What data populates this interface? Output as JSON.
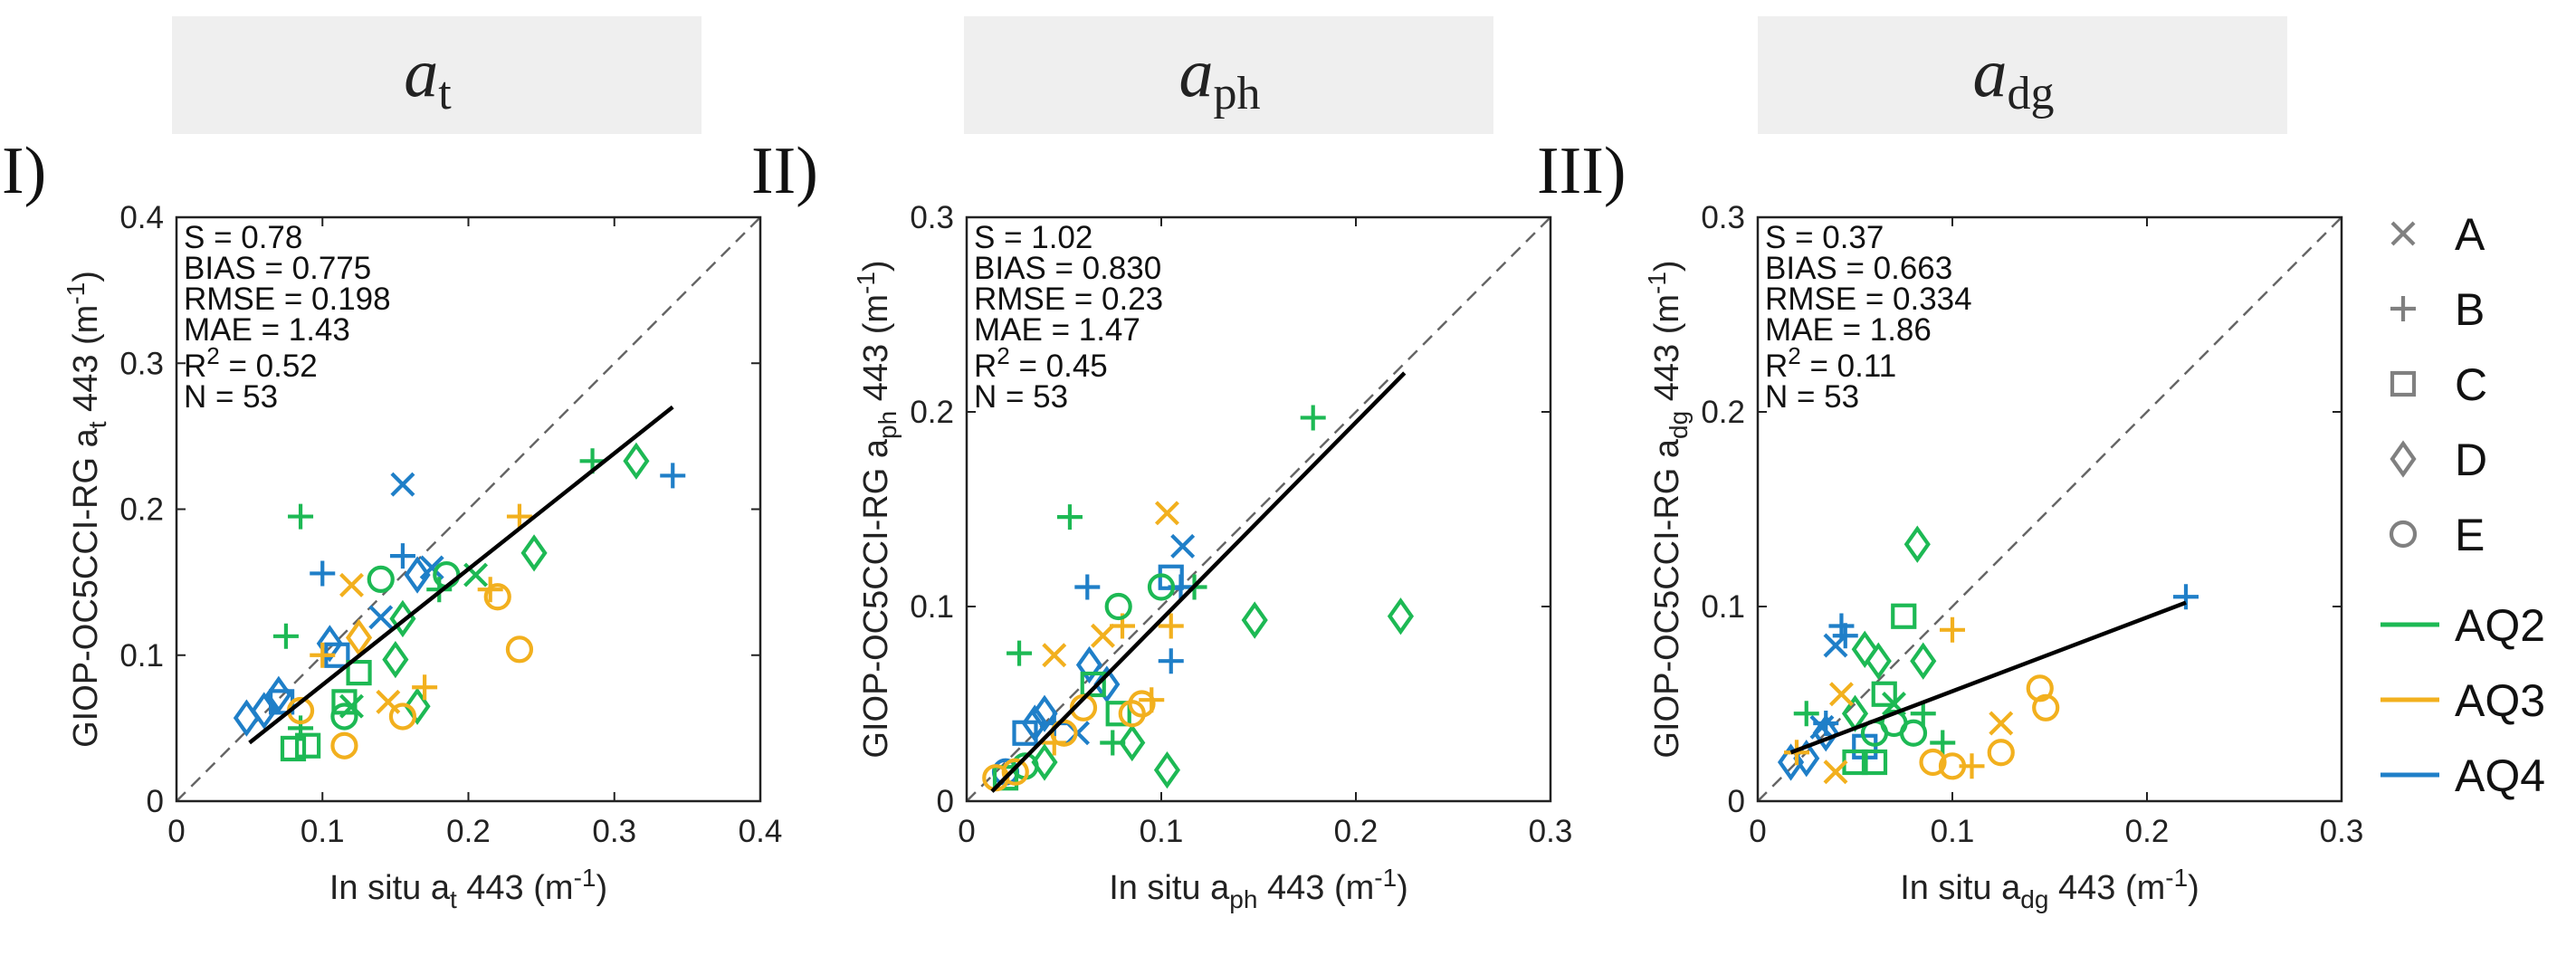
{
  "colors": {
    "AQ2": "#1db954",
    "AQ3": "#f2b01e",
    "AQ4": "#1f7fc8",
    "legend_marker": "#808080",
    "fit_line": "#000000",
    "one_to_one": "#666666",
    "header_bg": "#efefef"
  },
  "legend": {
    "markers": [
      {
        "symbol": "x",
        "label": "A"
      },
      {
        "symbol": "+",
        "label": "B"
      },
      {
        "symbol": "square",
        "label": "C"
      },
      {
        "symbol": "diamond",
        "label": "D"
      },
      {
        "symbol": "circle",
        "label": "E"
      }
    ],
    "lines": [
      {
        "label": "AQ2",
        "color_key": "AQ2"
      },
      {
        "label": "AQ3",
        "color_key": "AQ3"
      },
      {
        "label": "AQ4",
        "color_key": "AQ4"
      }
    ]
  },
  "chart_data": [
    {
      "type": "scatter",
      "panel": "I)",
      "header": {
        "main": "a",
        "sub": "t"
      },
      "xlabel": {
        "pre": "In situ a",
        "sub": "t",
        "post": " 443 (m",
        "sup": "-1",
        "end": ")"
      },
      "ylabel": {
        "pre": "GIOP-OC5CCI-RG a",
        "sub": "t",
        "post": " 443 (m",
        "sup": "-1",
        "end": ")"
      },
      "xlim": [
        0,
        0.4
      ],
      "ylim": [
        0,
        0.4
      ],
      "xticks": [
        "0",
        "0.1",
        "0.2",
        "0.3",
        "0.4"
      ],
      "yticks": [
        "0",
        "0.1",
        "0.2",
        "0.3",
        "0.4"
      ],
      "stats": {
        "S": "S = 0.78",
        "BIAS": "BIAS = 0.775",
        "RMSE": "RMSE = 0.198",
        "MAE": "MAE = 1.43",
        "R2": "0.52",
        "N": "N = 53"
      },
      "fit_line": [
        [
          0.05,
          0.04
        ],
        [
          0.34,
          0.27
        ]
      ],
      "points": [
        {
          "s": "x",
          "g": "AQ4",
          "x": 0.155,
          "y": 0.217
        },
        {
          "s": "x",
          "g": "AQ4",
          "x": 0.14,
          "y": 0.126
        },
        {
          "s": "x",
          "g": "AQ4",
          "x": 0.175,
          "y": 0.16
        },
        {
          "s": "+",
          "g": "AQ4",
          "x": 0.1,
          "y": 0.156
        },
        {
          "s": "+",
          "g": "AQ4",
          "x": 0.155,
          "y": 0.168
        },
        {
          "s": "+",
          "g": "AQ4",
          "x": 0.34,
          "y": 0.223
        },
        {
          "s": "square",
          "g": "AQ4",
          "x": 0.072,
          "y": 0.068
        },
        {
          "s": "square",
          "g": "AQ4",
          "x": 0.11,
          "y": 0.1
        },
        {
          "s": "diamond",
          "g": "AQ4",
          "x": 0.048,
          "y": 0.057
        },
        {
          "s": "diamond",
          "g": "AQ4",
          "x": 0.07,
          "y": 0.073
        },
        {
          "s": "diamond",
          "g": "AQ4",
          "x": 0.105,
          "y": 0.108
        },
        {
          "s": "diamond",
          "g": "AQ4",
          "x": 0.165,
          "y": 0.155
        },
        {
          "s": "diamond",
          "g": "AQ4",
          "x": 0.06,
          "y": 0.062
        },
        {
          "s": "+",
          "g": "AQ2",
          "x": 0.085,
          "y": 0.195
        },
        {
          "s": "+",
          "g": "AQ2",
          "x": 0.075,
          "y": 0.113
        },
        {
          "s": "+",
          "g": "AQ2",
          "x": 0.285,
          "y": 0.233
        },
        {
          "s": "+",
          "g": "AQ2",
          "x": 0.18,
          "y": 0.145
        },
        {
          "s": "+",
          "g": "AQ2",
          "x": 0.085,
          "y": 0.05
        },
        {
          "s": "x",
          "g": "AQ2",
          "x": 0.12,
          "y": 0.065
        },
        {
          "s": "x",
          "g": "AQ2",
          "x": 0.205,
          "y": 0.155
        },
        {
          "s": "square",
          "g": "AQ2",
          "x": 0.08,
          "y": 0.036
        },
        {
          "s": "square",
          "g": "AQ2",
          "x": 0.09,
          "y": 0.038
        },
        {
          "s": "square",
          "g": "AQ2",
          "x": 0.125,
          "y": 0.088
        },
        {
          "s": "square",
          "g": "AQ2",
          "x": 0.115,
          "y": 0.068
        },
        {
          "s": "diamond",
          "g": "AQ2",
          "x": 0.315,
          "y": 0.233
        },
        {
          "s": "diamond",
          "g": "AQ2",
          "x": 0.245,
          "y": 0.17
        },
        {
          "s": "diamond",
          "g": "AQ2",
          "x": 0.155,
          "y": 0.125
        },
        {
          "s": "diamond",
          "g": "AQ2",
          "x": 0.165,
          "y": 0.065
        },
        {
          "s": "diamond",
          "g": "AQ2",
          "x": 0.15,
          "y": 0.097
        },
        {
          "s": "circle",
          "g": "AQ2",
          "x": 0.14,
          "y": 0.152
        },
        {
          "s": "circle",
          "g": "AQ2",
          "x": 0.185,
          "y": 0.155
        },
        {
          "s": "circle",
          "g": "AQ2",
          "x": 0.115,
          "y": 0.058
        },
        {
          "s": "+",
          "g": "AQ3",
          "x": 0.235,
          "y": 0.195
        },
        {
          "s": "+",
          "g": "AQ3",
          "x": 0.215,
          "y": 0.145
        },
        {
          "s": "+",
          "g": "AQ3",
          "x": 0.17,
          "y": 0.078
        },
        {
          "s": "+",
          "g": "AQ3",
          "x": 0.1,
          "y": 0.1
        },
        {
          "s": "x",
          "g": "AQ3",
          "x": 0.12,
          "y": 0.148
        },
        {
          "s": "x",
          "g": "AQ3",
          "x": 0.145,
          "y": 0.068
        },
        {
          "s": "diamond",
          "g": "AQ3",
          "x": 0.125,
          "y": 0.112
        },
        {
          "s": "circle",
          "g": "AQ3",
          "x": 0.22,
          "y": 0.14
        },
        {
          "s": "circle",
          "g": "AQ3",
          "x": 0.235,
          "y": 0.104
        },
        {
          "s": "circle",
          "g": "AQ3",
          "x": 0.115,
          "y": 0.038
        },
        {
          "s": "circle",
          "g": "AQ3",
          "x": 0.155,
          "y": 0.058
        },
        {
          "s": "circle",
          "g": "AQ3",
          "x": 0.085,
          "y": 0.062
        }
      ]
    },
    {
      "type": "scatter",
      "panel": "II)",
      "header": {
        "main": "a",
        "sub": "ph"
      },
      "xlabel": {
        "pre": "In situ a",
        "sub": "ph",
        "post": " 443 (m",
        "sup": "-1",
        "end": ")"
      },
      "ylabel": {
        "pre": "GIOP-OC5CCI-RG a",
        "sub": "ph",
        "post": " 443 (m",
        "sup": "-1",
        "end": ")"
      },
      "xlim": [
        0,
        0.3
      ],
      "ylim": [
        0,
        0.3
      ],
      "xticks": [
        "0",
        "0.1",
        "0.2",
        "0.3"
      ],
      "yticks": [
        "0",
        "0.1",
        "0.2",
        "0.3"
      ],
      "stats": {
        "S": "S = 1.02",
        "BIAS": "BIAS = 0.830",
        "RMSE": "RMSE = 0.23",
        "MAE": "MAE = 1.47",
        "R2": "0.45",
        "N": "N = 53"
      },
      "fit_line": [
        [
          0.013,
          0.005
        ],
        [
          0.225,
          0.22
        ]
      ],
      "points": [
        {
          "s": "+",
          "g": "AQ2",
          "x": 0.178,
          "y": 0.197
        },
        {
          "s": "+",
          "g": "AQ2",
          "x": 0.053,
          "y": 0.146
        },
        {
          "s": "+",
          "g": "AQ2",
          "x": 0.027,
          "y": 0.076
        },
        {
          "s": "+",
          "g": "AQ2",
          "x": 0.117,
          "y": 0.11
        },
        {
          "s": "+",
          "g": "AQ2",
          "x": 0.075,
          "y": 0.03
        },
        {
          "s": "x",
          "g": "AQ3",
          "x": 0.103,
          "y": 0.148
        },
        {
          "s": "x",
          "g": "AQ3",
          "x": 0.045,
          "y": 0.075
        },
        {
          "s": "x",
          "g": "AQ3",
          "x": 0.07,
          "y": 0.085
        },
        {
          "s": "+",
          "g": "AQ3",
          "x": 0.08,
          "y": 0.09
        },
        {
          "s": "+",
          "g": "AQ3",
          "x": 0.105,
          "y": 0.09
        },
        {
          "s": "+",
          "g": "AQ3",
          "x": 0.095,
          "y": 0.052
        },
        {
          "s": "+",
          "g": "AQ3",
          "x": 0.045,
          "y": 0.03
        },
        {
          "s": "x",
          "g": "AQ4",
          "x": 0.111,
          "y": 0.131
        },
        {
          "s": "x",
          "g": "AQ4",
          "x": 0.057,
          "y": 0.035
        },
        {
          "s": "+",
          "g": "AQ4",
          "x": 0.062,
          "y": 0.11
        },
        {
          "s": "+",
          "g": "AQ4",
          "x": 0.105,
          "y": 0.072
        },
        {
          "s": "+",
          "g": "AQ4",
          "x": 0.11,
          "y": 0.11
        },
        {
          "s": "+",
          "g": "AQ4",
          "x": 0.045,
          "y": 0.04
        },
        {
          "s": "diamond",
          "g": "AQ4",
          "x": 0.063,
          "y": 0.07
        },
        {
          "s": "diamond",
          "g": "AQ4",
          "x": 0.072,
          "y": 0.06
        },
        {
          "s": "diamond",
          "g": "AQ4",
          "x": 0.035,
          "y": 0.04
        },
        {
          "s": "diamond",
          "g": "AQ4",
          "x": 0.04,
          "y": 0.045
        },
        {
          "s": "square",
          "g": "AQ4",
          "x": 0.03,
          "y": 0.035
        },
        {
          "s": "square",
          "g": "AQ4",
          "x": 0.105,
          "y": 0.115
        },
        {
          "s": "circle",
          "g": "AQ4",
          "x": 0.02,
          "y": 0.015
        },
        {
          "s": "diamond",
          "g": "AQ2",
          "x": 0.223,
          "y": 0.095
        },
        {
          "s": "diamond",
          "g": "AQ2",
          "x": 0.148,
          "y": 0.093
        },
        {
          "s": "diamond",
          "g": "AQ2",
          "x": 0.103,
          "y": 0.016
        },
        {
          "s": "diamond",
          "g": "AQ2",
          "x": 0.085,
          "y": 0.03
        },
        {
          "s": "diamond",
          "g": "AQ2",
          "x": 0.04,
          "y": 0.02
        },
        {
          "s": "square",
          "g": "AQ2",
          "x": 0.065,
          "y": 0.06
        },
        {
          "s": "square",
          "g": "AQ2",
          "x": 0.078,
          "y": 0.045
        },
        {
          "s": "square",
          "g": "AQ2",
          "x": 0.02,
          "y": 0.012
        },
        {
          "s": "circle",
          "g": "AQ2",
          "x": 0.078,
          "y": 0.1
        },
        {
          "s": "circle",
          "g": "AQ2",
          "x": 0.1,
          "y": 0.11
        },
        {
          "s": "circle",
          "g": "AQ2",
          "x": 0.03,
          "y": 0.018
        },
        {
          "s": "circle",
          "g": "AQ3",
          "x": 0.085,
          "y": 0.045
        },
        {
          "s": "circle",
          "g": "AQ3",
          "x": 0.09,
          "y": 0.05
        },
        {
          "s": "circle",
          "g": "AQ3",
          "x": 0.025,
          "y": 0.015
        },
        {
          "s": "circle",
          "g": "AQ3",
          "x": 0.06,
          "y": 0.048
        },
        {
          "s": "circle",
          "g": "AQ3",
          "x": 0.015,
          "y": 0.012
        },
        {
          "s": "circle",
          "g": "AQ3",
          "x": 0.05,
          "y": 0.035
        }
      ]
    },
    {
      "type": "scatter",
      "panel": "III)",
      "header": {
        "main": "a",
        "sub": "dg"
      },
      "xlabel": {
        "pre": "In situ a",
        "sub": "dg",
        "post": " 443 (m",
        "sup": "-1",
        "end": ")"
      },
      "ylabel": {
        "pre": "GIOP-OC5CCI-RG a",
        "sub": "dg",
        "post": " 443 (m",
        "sup": "-1",
        "end": ")"
      },
      "xlim": [
        0,
        0.3
      ],
      "ylim": [
        0,
        0.3
      ],
      "xticks": [
        "0",
        "0.1",
        "0.2",
        "0.3"
      ],
      "yticks": [
        "0",
        "0.1",
        "0.2",
        "0.3"
      ],
      "stats": {
        "S": "S = 0.37",
        "BIAS": "BIAS = 0.663",
        "RMSE": "RMSE = 0.334",
        "MAE": "MAE = 1.86",
        "R2": "0.11",
        "N": "N = 53"
      },
      "fit_line": [
        [
          0.017,
          0.025
        ],
        [
          0.22,
          0.102
        ]
      ],
      "points": [
        {
          "s": "+",
          "g": "AQ4",
          "x": 0.22,
          "y": 0.105
        },
        {
          "s": "+",
          "g": "AQ4",
          "x": 0.043,
          "y": 0.09
        },
        {
          "s": "+",
          "g": "AQ4",
          "x": 0.045,
          "y": 0.085
        },
        {
          "s": "+",
          "g": "AQ4",
          "x": 0.035,
          "y": 0.04
        },
        {
          "s": "x",
          "g": "AQ4",
          "x": 0.04,
          "y": 0.08
        },
        {
          "s": "x",
          "g": "AQ4",
          "x": 0.033,
          "y": 0.038
        },
        {
          "s": "diamond",
          "g": "AQ4",
          "x": 0.017,
          "y": 0.02
        },
        {
          "s": "diamond",
          "g": "AQ4",
          "x": 0.025,
          "y": 0.022
        },
        {
          "s": "diamond",
          "g": "AQ4",
          "x": 0.035,
          "y": 0.035
        },
        {
          "s": "square",
          "g": "AQ4",
          "x": 0.055,
          "y": 0.028
        },
        {
          "s": "diamond",
          "g": "AQ2",
          "x": 0.082,
          "y": 0.132
        },
        {
          "s": "diamond",
          "g": "AQ2",
          "x": 0.055,
          "y": 0.078
        },
        {
          "s": "diamond",
          "g": "AQ2",
          "x": 0.062,
          "y": 0.072
        },
        {
          "s": "diamond",
          "g": "AQ2",
          "x": 0.085,
          "y": 0.072
        },
        {
          "s": "diamond",
          "g": "AQ2",
          "x": 0.05,
          "y": 0.045
        },
        {
          "s": "square",
          "g": "AQ2",
          "x": 0.075,
          "y": 0.095
        },
        {
          "s": "square",
          "g": "AQ2",
          "x": 0.065,
          "y": 0.055
        },
        {
          "s": "square",
          "g": "AQ2",
          "x": 0.06,
          "y": 0.02
        },
        {
          "s": "square",
          "g": "AQ2",
          "x": 0.05,
          "y": 0.02
        },
        {
          "s": "+",
          "g": "AQ2",
          "x": 0.095,
          "y": 0.03
        },
        {
          "s": "+",
          "g": "AQ2",
          "x": 0.085,
          "y": 0.045
        },
        {
          "s": "+",
          "g": "AQ2",
          "x": 0.025,
          "y": 0.045
        },
        {
          "s": "x",
          "g": "AQ2",
          "x": 0.07,
          "y": 0.05
        },
        {
          "s": "circle",
          "g": "AQ2",
          "x": 0.06,
          "y": 0.035
        },
        {
          "s": "circle",
          "g": "AQ2",
          "x": 0.07,
          "y": 0.04
        },
        {
          "s": "circle",
          "g": "AQ2",
          "x": 0.08,
          "y": 0.035
        },
        {
          "s": "+",
          "g": "AQ3",
          "x": 0.1,
          "y": 0.088
        },
        {
          "s": "+",
          "g": "AQ3",
          "x": 0.11,
          "y": 0.018
        },
        {
          "s": "+",
          "g": "AQ3",
          "x": 0.02,
          "y": 0.025
        },
        {
          "s": "x",
          "g": "AQ3",
          "x": 0.043,
          "y": 0.055
        },
        {
          "s": "x",
          "g": "AQ3",
          "x": 0.125,
          "y": 0.04
        },
        {
          "s": "x",
          "g": "AQ3",
          "x": 0.04,
          "y": 0.015
        },
        {
          "s": "circle",
          "g": "AQ3",
          "x": 0.145,
          "y": 0.058
        },
        {
          "s": "circle",
          "g": "AQ3",
          "x": 0.148,
          "y": 0.048
        },
        {
          "s": "circle",
          "g": "AQ3",
          "x": 0.1,
          "y": 0.018
        },
        {
          "s": "circle",
          "g": "AQ3",
          "x": 0.125,
          "y": 0.025
        },
        {
          "s": "circle",
          "g": "AQ3",
          "x": 0.09,
          "y": 0.02
        }
      ]
    }
  ]
}
